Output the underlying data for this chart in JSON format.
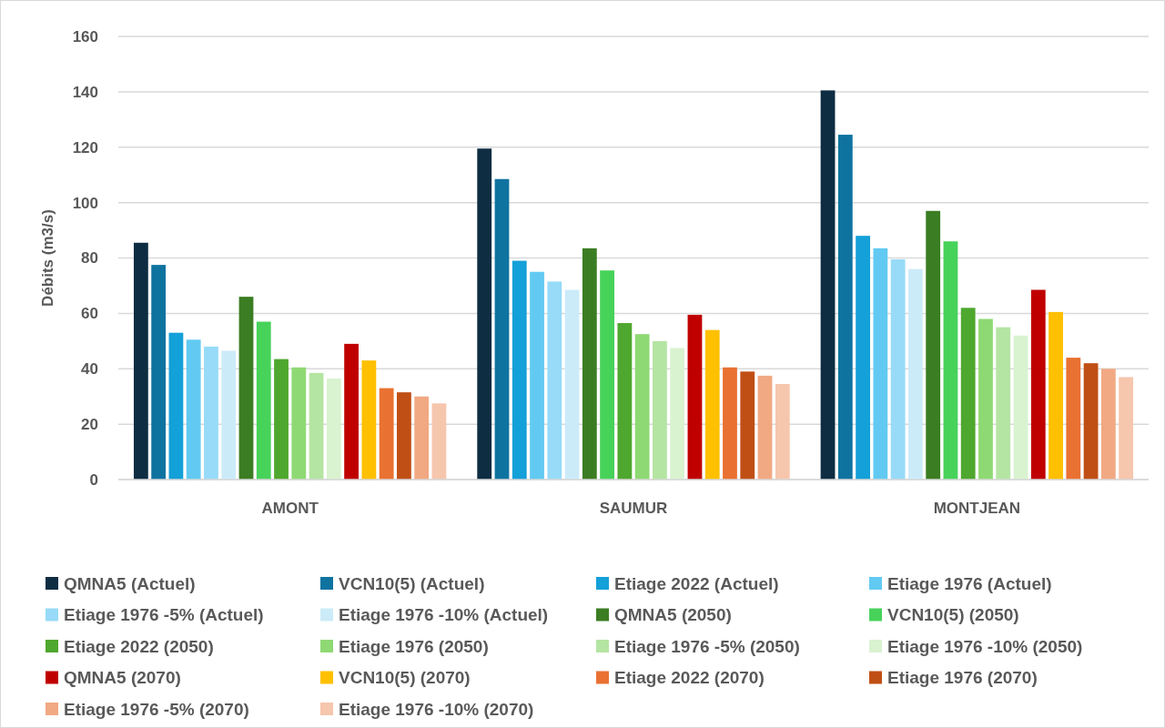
{
  "chart_data": {
    "type": "bar",
    "ylabel": "Débits (m3/s)",
    "categories": [
      "AMONT",
      "SAUMUR",
      "MONTJEAN"
    ],
    "ylim": [
      0,
      160
    ],
    "yticks": [
      0,
      20,
      40,
      60,
      80,
      100,
      120,
      140,
      160
    ],
    "grid": "y",
    "legend": "bottom",
    "series": [
      {
        "name": "QMNA5 (Actuel)",
        "color": "#0e2d42",
        "values": [
          85.5,
          119.5,
          140.5
        ]
      },
      {
        "name": "VCN10(5) (Actuel)",
        "color": "#0f73a0",
        "values": [
          77.5,
          108.5,
          124.5
        ]
      },
      {
        "name": "Etiage 2022  (Actuel)",
        "color": "#14a0d8",
        "values": [
          53,
          79,
          88
        ]
      },
      {
        "name": "Etiage 1976 (Actuel)",
        "color": "#62caf2",
        "values": [
          50.5,
          75,
          83.5
        ]
      },
      {
        "name": "Etiage 1976 -5% (Actuel)",
        "color": "#97dbf8",
        "values": [
          48,
          71.5,
          79.5
        ]
      },
      {
        "name": "Etiage 1976 -10% (Actuel)",
        "color": "#ccebf8",
        "values": [
          46.5,
          68.5,
          76
        ]
      },
      {
        "name": "QMNA5 (2050)",
        "color": "#3b7d23",
        "values": [
          66,
          83.5,
          97
        ]
      },
      {
        "name": "VCN10(5) (2050)",
        "color": "#47d25a",
        "values": [
          57,
          75.5,
          86
        ]
      },
      {
        "name": "Etiage 2022  (2050)",
        "color": "#4ea72e",
        "values": [
          43.5,
          56.5,
          62
        ]
      },
      {
        "name": "Etiage 1976 (2050)",
        "color": "#8ed973",
        "values": [
          40.5,
          52.5,
          58
        ]
      },
      {
        "name": "Etiage 1976 -5% (2050)",
        "color": "#b4e5a2",
        "values": [
          38.5,
          50,
          55
        ]
      },
      {
        "name": "Etiage 1976 -10% (2050)",
        "color": "#d9f2d0",
        "values": [
          36.5,
          47.5,
          52
        ]
      },
      {
        "name": "QMNA5 (2070)",
        "color": "#c00000",
        "values": [
          49,
          59.5,
          68.5
        ]
      },
      {
        "name": "VCN10(5) (2070)",
        "color": "#ffc000",
        "values": [
          43,
          54,
          60.5
        ]
      },
      {
        "name": "Etiage 2022  (2070)",
        "color": "#e97132",
        "values": [
          33,
          40.5,
          44
        ]
      },
      {
        "name": "Etiage 1976 (2070)",
        "color": "#c04f15",
        "values": [
          31.5,
          39,
          42
        ]
      },
      {
        "name": "Etiage 1976 -5% (2070)",
        "color": "#f1a983",
        "values": [
          30,
          37.5,
          40
        ]
      },
      {
        "name": "Etiage 1976 -10% (2070)",
        "color": "#f6c6ad",
        "values": [
          27.5,
          34.5,
          37
        ]
      }
    ]
  }
}
